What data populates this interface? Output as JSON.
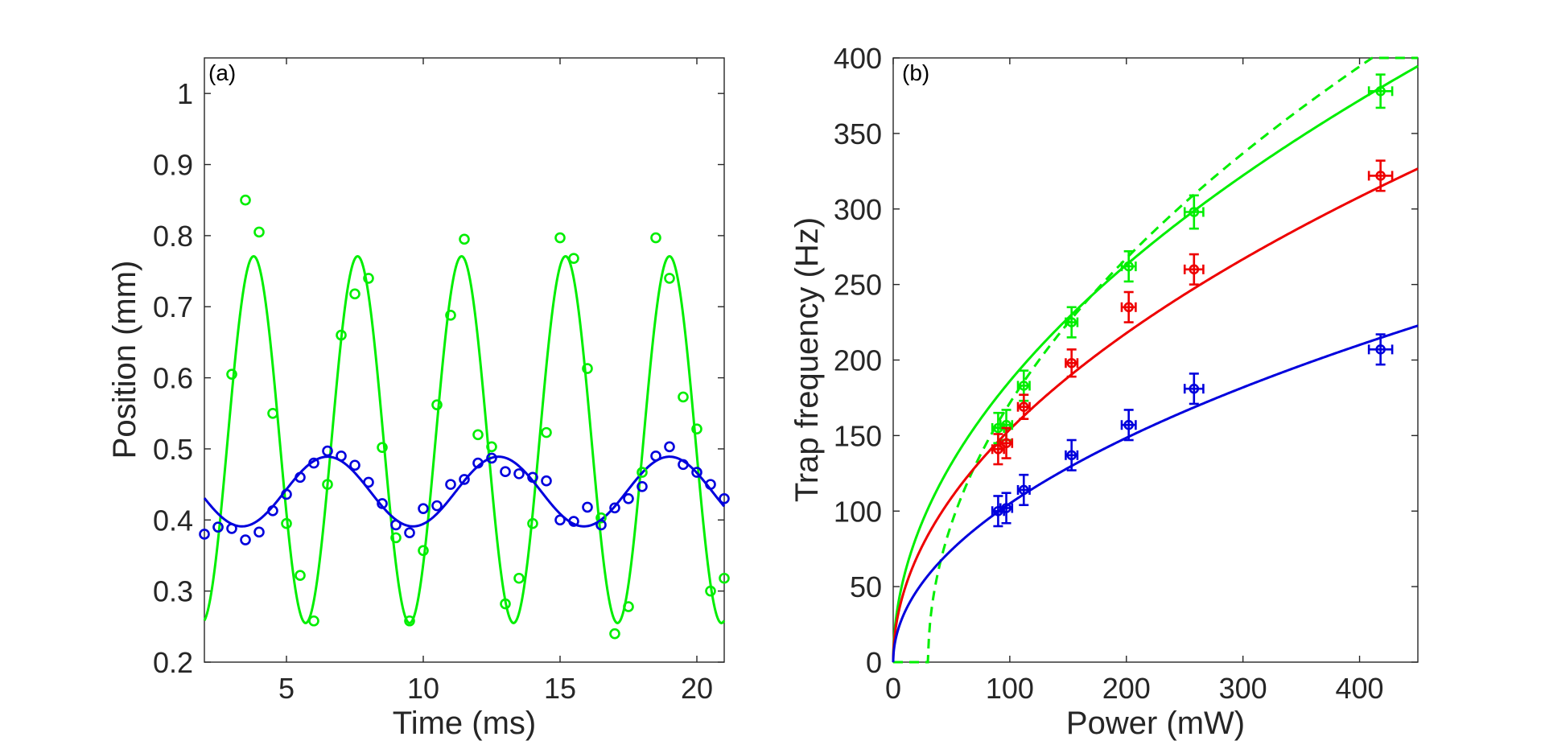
{
  "chart_data": [
    {
      "type": "scatter",
      "panel_label": "(a)",
      "xlabel": "Time (ms)",
      "ylabel": "Position (mm)",
      "xlim": [
        2,
        21
      ],
      "ylim": [
        0.2,
        1.05
      ],
      "xticks": [
        5,
        10,
        15,
        20
      ],
      "yticks": [
        0.2,
        0.3,
        0.4,
        0.5,
        0.6,
        0.7,
        0.8,
        0.9,
        1
      ],
      "xtick_labels": [
        "5",
        "10",
        "15",
        "20"
      ],
      "ytick_labels": [
        "0.2",
        "0.3",
        "0.4",
        "0.5",
        "0.6",
        "0.7",
        "0.8",
        "0.9",
        "1"
      ],
      "series": [
        {
          "name": "green",
          "color": "#00ee00",
          "points": [
            [
              2.5,
              0.39
            ],
            [
              3,
              0.605
            ],
            [
              3.5,
              0.85
            ],
            [
              4,
              0.805
            ],
            [
              4.5,
              0.55
            ],
            [
              5,
              0.395
            ],
            [
              5.5,
              0.322
            ],
            [
              6,
              0.258
            ],
            [
              6.5,
              0.45
            ],
            [
              7,
              0.66
            ],
            [
              7.5,
              0.718
            ],
            [
              8,
              0.74
            ],
            [
              8.5,
              0.502
            ],
            [
              9,
              0.375
            ],
            [
              9.5,
              0.258
            ],
            [
              10,
              0.357
            ],
            [
              10.5,
              0.562
            ],
            [
              11,
              0.688
            ],
            [
              11.5,
              0.795
            ],
            [
              12,
              0.52
            ],
            [
              12.5,
              0.503
            ],
            [
              13,
              0.282
            ],
            [
              13.5,
              0.318
            ],
            [
              14,
              0.395
            ],
            [
              14.5,
              0.523
            ],
            [
              15,
              0.797
            ],
            [
              15.5,
              0.768
            ],
            [
              16,
              0.613
            ],
            [
              16.5,
              0.403
            ],
            [
              17,
              0.24
            ],
            [
              17.5,
              0.278
            ],
            [
              18,
              0.467
            ],
            [
              18.5,
              0.797
            ],
            [
              19,
              0.74
            ],
            [
              19.5,
              0.573
            ],
            [
              20,
              0.528
            ],
            [
              20.5,
              0.3
            ],
            [
              21,
              0.318
            ]
          ],
          "fit": {
            "mean": 0.513,
            "amplitude": 0.258,
            "period_ms": 3.8,
            "peak_ms": 3.8
          }
        },
        {
          "name": "blue",
          "color": "#0000dd",
          "points": [
            [
              2,
              0.38
            ],
            [
              2.5,
              0.39
            ],
            [
              3,
              0.388
            ],
            [
              3.5,
              0.372
            ],
            [
              4,
              0.383
            ],
            [
              4.5,
              0.413
            ],
            [
              5,
              0.436
            ],
            [
              5.5,
              0.46
            ],
            [
              6,
              0.48
            ],
            [
              6.5,
              0.497
            ],
            [
              7,
              0.49
            ],
            [
              7.5,
              0.477
            ],
            [
              8,
              0.453
            ],
            [
              8.5,
              0.423
            ],
            [
              9,
              0.393
            ],
            [
              9.5,
              0.382
            ],
            [
              10,
              0.416
            ],
            [
              10.5,
              0.42
            ],
            [
              11,
              0.45
            ],
            [
              11.5,
              0.457
            ],
            [
              12,
              0.48
            ],
            [
              12.5,
              0.487
            ],
            [
              13,
              0.468
            ],
            [
              13.5,
              0.465
            ],
            [
              14,
              0.46
            ],
            [
              14.5,
              0.455
            ],
            [
              15,
              0.4
            ],
            [
              15.5,
              0.398
            ],
            [
              16,
              0.418
            ],
            [
              16.5,
              0.393
            ],
            [
              17,
              0.417
            ],
            [
              17.5,
              0.43
            ],
            [
              18,
              0.447
            ],
            [
              18.5,
              0.49
            ],
            [
              19,
              0.503
            ],
            [
              19.5,
              0.478
            ],
            [
              20,
              0.467
            ],
            [
              20.5,
              0.45
            ],
            [
              21,
              0.43
            ]
          ],
          "fit": {
            "mean": 0.44,
            "amplitude": 0.049,
            "period_ms": 6.25,
            "peak_ms": 6.5
          }
        }
      ]
    },
    {
      "type": "scatter",
      "panel_label": "(b)",
      "xlabel": "Power (mW)",
      "ylabel": "Trap frequency (Hz)",
      "xlim": [
        0,
        450
      ],
      "ylim": [
        0,
        400
      ],
      "xticks": [
        0,
        100,
        200,
        300,
        400
      ],
      "yticks": [
        0,
        50,
        100,
        150,
        200,
        250,
        300,
        350,
        400
      ],
      "xtick_labels": [
        "0",
        "100",
        "200",
        "300",
        "400"
      ],
      "ytick_labels": [
        "0",
        "50",
        "100",
        "150",
        "200",
        "250",
        "300",
        "350",
        "400"
      ],
      "series": [
        {
          "name": "green",
          "color": "#00ee00",
          "points": [
            [
              90,
              155,
              5,
              10
            ],
            [
              97,
              157,
              5,
              10
            ],
            [
              112,
              183,
              5,
              10
            ],
            [
              153,
              225,
              5,
              10
            ],
            [
              202,
              262,
              6,
              10
            ],
            [
              258,
              298,
              8,
              11
            ],
            [
              418,
              378,
              10,
              11
            ]
          ],
          "fit": {
            "type": "sqrt",
            "coef": 18.6
          },
          "fit_dashed": {
            "type": "sqrt_offset",
            "coef": 20.5,
            "offset_mw": 30
          }
        },
        {
          "name": "red",
          "color": "#ee0000",
          "points": [
            [
              90,
              141,
              5,
              10
            ],
            [
              97,
              145,
              5,
              10
            ],
            [
              112,
              169,
              5,
              8
            ],
            [
              153,
              198,
              5,
              9
            ],
            [
              202,
              235,
              6,
              10
            ],
            [
              258,
              260,
              8,
              10
            ],
            [
              418,
              322,
              10,
              10
            ]
          ],
          "fit": {
            "type": "sqrt",
            "coef": 15.4
          }
        },
        {
          "name": "blue",
          "color": "#0000dd",
          "points": [
            [
              90,
              100,
              5,
              10
            ],
            [
              97,
              102,
              5,
              10
            ],
            [
              112,
              114,
              5,
              10
            ],
            [
              153,
              137,
              5,
              10
            ],
            [
              202,
              157,
              6,
              10
            ],
            [
              258,
              181,
              8,
              10
            ],
            [
              418,
              207,
              10,
              10
            ]
          ],
          "fit": {
            "type": "sqrt",
            "coef": 10.5
          }
        }
      ]
    }
  ]
}
